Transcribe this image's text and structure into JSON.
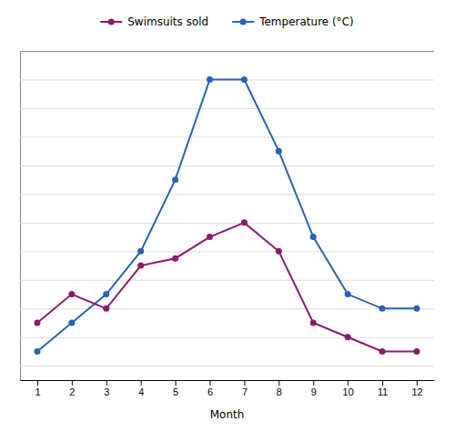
{
  "chart_data": {
    "type": "line",
    "x": [
      1,
      2,
      3,
      4,
      5,
      6,
      7,
      8,
      9,
      10,
      11,
      12
    ],
    "series": [
      {
        "name": "Temperature (°C)",
        "color": "#2962B8",
        "values": [
          1,
          3,
          5,
          8,
          13,
          20,
          20,
          15,
          9,
          5,
          4,
          4
        ]
      },
      {
        "name": "Swimsuits sold",
        "color": "#8B1A6B",
        "values": [
          3,
          5,
          4,
          7,
          7.5,
          9,
          10,
          8,
          3,
          2,
          1,
          1
        ]
      }
    ],
    "xlabel": "Month",
    "xlim": [
      0.5,
      12.5
    ],
    "ylim": [
      -1,
      22
    ],
    "xticks": [
      1,
      2,
      3,
      4,
      5,
      6,
      7,
      8,
      9,
      10,
      11,
      12
    ],
    "yticks": [
      0,
      2,
      4,
      6,
      8,
      10,
      12,
      14,
      16,
      18,
      20
    ],
    "grid": true,
    "legend": "top",
    "marker": "circle",
    "tick_labels": "x"
  }
}
